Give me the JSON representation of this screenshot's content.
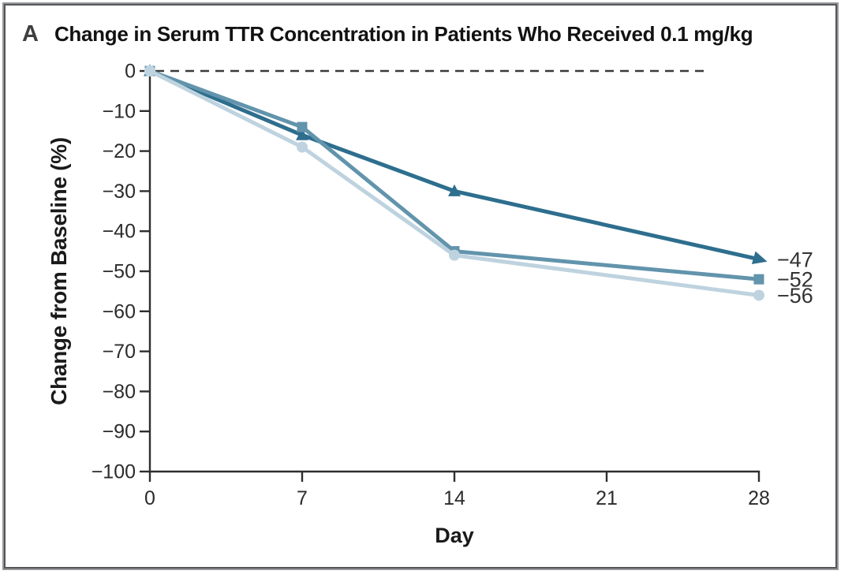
{
  "panel_label": "A",
  "title": "Change in Serum TTR Concentration in Patients Who Received 0.1 mg/kg",
  "chart_data": {
    "type": "line",
    "title": "Change in Serum TTR Concentration in Patients Who Received 0.1 mg/kg",
    "xlabel": "Day",
    "ylabel": "Change from Baseline (%)",
    "xlim": [
      0,
      28
    ],
    "ylim": [
      -100,
      0
    ],
    "x_ticks": [
      0,
      7,
      14,
      21,
      28
    ],
    "x_tick_labels": [
      "0",
      "7",
      "14",
      "21",
      "28"
    ],
    "y_ticks": [
      0,
      -10,
      -20,
      -30,
      -40,
      -50,
      -60,
      -70,
      -80,
      -90,
      -100
    ],
    "y_tick_labels": [
      "0",
      "−10",
      "−20",
      "−30",
      "−40",
      "−50",
      "−60",
      "−70",
      "−80",
      "−90",
      "−100"
    ],
    "grid": false,
    "legend_position": "none",
    "zero_reference_line": {
      "y": 0,
      "style": "dashed",
      "color": "#3a3a3a"
    },
    "axis_color": "#2e2e2e",
    "text_color": "#2b2b2b",
    "end_label_color": "#333333",
    "x": [
      0,
      7,
      14,
      28
    ],
    "series": [
      {
        "name": "patient-triangle",
        "marker": "triangle",
        "color": "#2e6e8e",
        "values": [
          0,
          -16,
          -30,
          -47
        ],
        "end_label": "−47"
      },
      {
        "name": "patient-square",
        "marker": "square",
        "color": "#6294ac",
        "values": [
          0,
          -14,
          -45,
          -52
        ],
        "end_label": "−52"
      },
      {
        "name": "patient-circle",
        "marker": "circle",
        "color": "#bed3df",
        "values": [
          0,
          -19,
          -46,
          -56
        ],
        "end_label": "−56"
      }
    ]
  }
}
